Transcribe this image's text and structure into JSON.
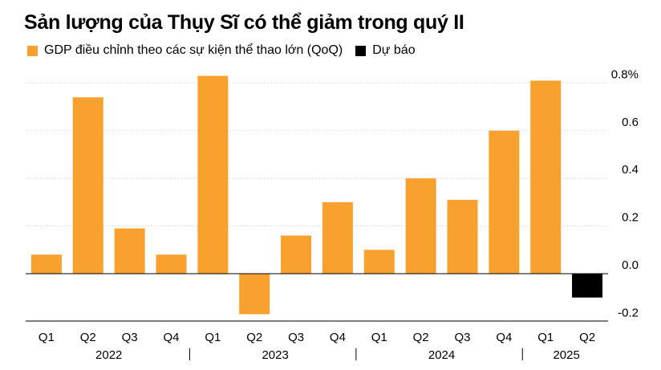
{
  "title": "Sản lượng của Thụy Sĩ có thể giảm trong quý II",
  "legend": [
    {
      "label": "GDP điều chỉnh theo các sự kiện thể thao lớn (QoQ)",
      "color": "#F9A12E"
    },
    {
      "label": "Dự báo",
      "color": "#000000"
    }
  ],
  "chart_data": {
    "type": "bar",
    "title": "Sản lượng của Thụy Sĩ có thể giảm trong quý II",
    "categories": [
      "Q1",
      "Q2",
      "Q3",
      "Q4",
      "Q1",
      "Q2",
      "Q3",
      "Q4",
      "Q1",
      "Q2",
      "Q3",
      "Q4",
      "Q1",
      "Q2"
    ],
    "years": [
      "2022",
      "2023",
      "2024",
      "2025"
    ],
    "series": [
      {
        "name": "GDP điều chỉnh theo các sự kiện thể thao lớn (QoQ)",
        "color": "#F9A12E",
        "values": [
          0.08,
          0.74,
          0.19,
          0.08,
          0.83,
          -0.17,
          0.16,
          0.3,
          0.1,
          0.4,
          0.31,
          0.6,
          0.81,
          null
        ]
      },
      {
        "name": "Dự báo",
        "color": "#000000",
        "values": [
          null,
          null,
          null,
          null,
          null,
          null,
          null,
          null,
          null,
          null,
          null,
          null,
          null,
          -0.1
        ]
      }
    ],
    "yticks": [
      "0.8%",
      "0.6",
      "0.4",
      "0.2",
      "0.0",
      "-0.2"
    ],
    "ylim": [
      -0.2,
      0.8
    ],
    "xlabel": "",
    "ylabel": "",
    "grid": true,
    "legend_position": "top-left"
  }
}
